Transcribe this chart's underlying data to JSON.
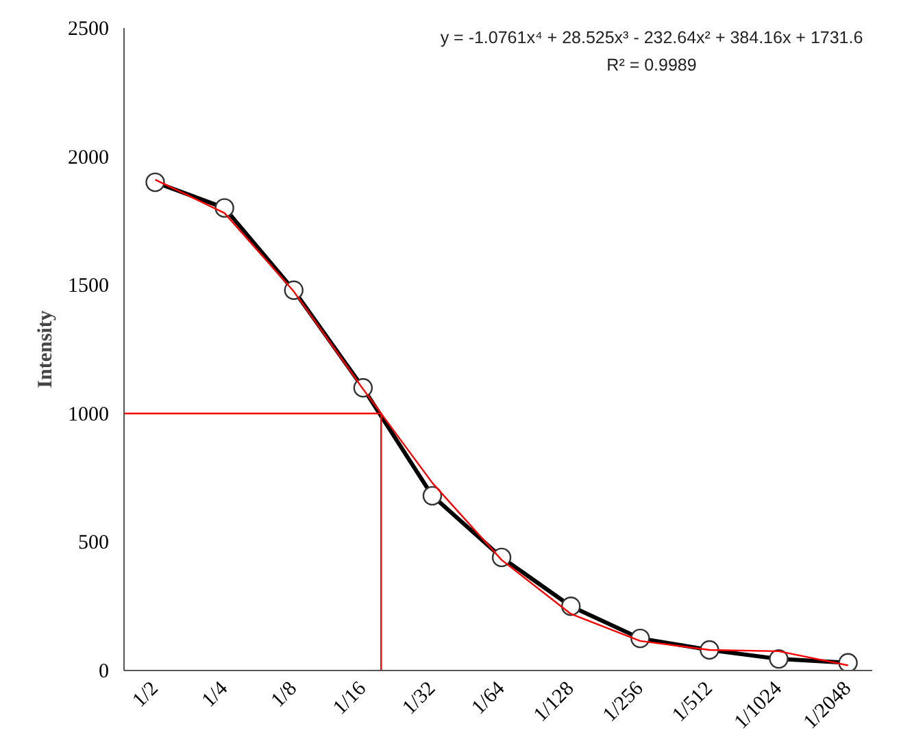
{
  "chart_data": {
    "type": "line",
    "ylabel": "Intensity",
    "categories": [
      "1/2",
      "1/4",
      "1/8",
      "1/16",
      "1/32",
      "1/64",
      "1/128",
      "1/256",
      "1/512",
      "1/1024",
      "1/2048"
    ],
    "series": [
      {
        "color": "#000000",
        "values": [
          1900,
          1800,
          1480,
          1100,
          680,
          440,
          250,
          125,
          80,
          45,
          30
        ],
        "marker": "circle"
      },
      {
        "color": "#ff0000",
        "values": [
          1910,
          1780,
          1475,
          1095,
          730,
          430,
          220,
          115,
          80,
          75,
          20
        ],
        "marker": "none"
      }
    ],
    "ref_lines": [
      {
        "axis": "y",
        "value": 1000,
        "color": "#ff0000"
      }
    ],
    "ylim": [
      0,
      2500
    ],
    "yticks": [
      0,
      500,
      1000,
      1500,
      2000,
      2500
    ],
    "grid": false,
    "annotations": [
      "y = -1.0761x⁴ + 28.525x³ - 232.64x² + 384.16x + 1731.6",
      "R² = 0.9989"
    ]
  }
}
